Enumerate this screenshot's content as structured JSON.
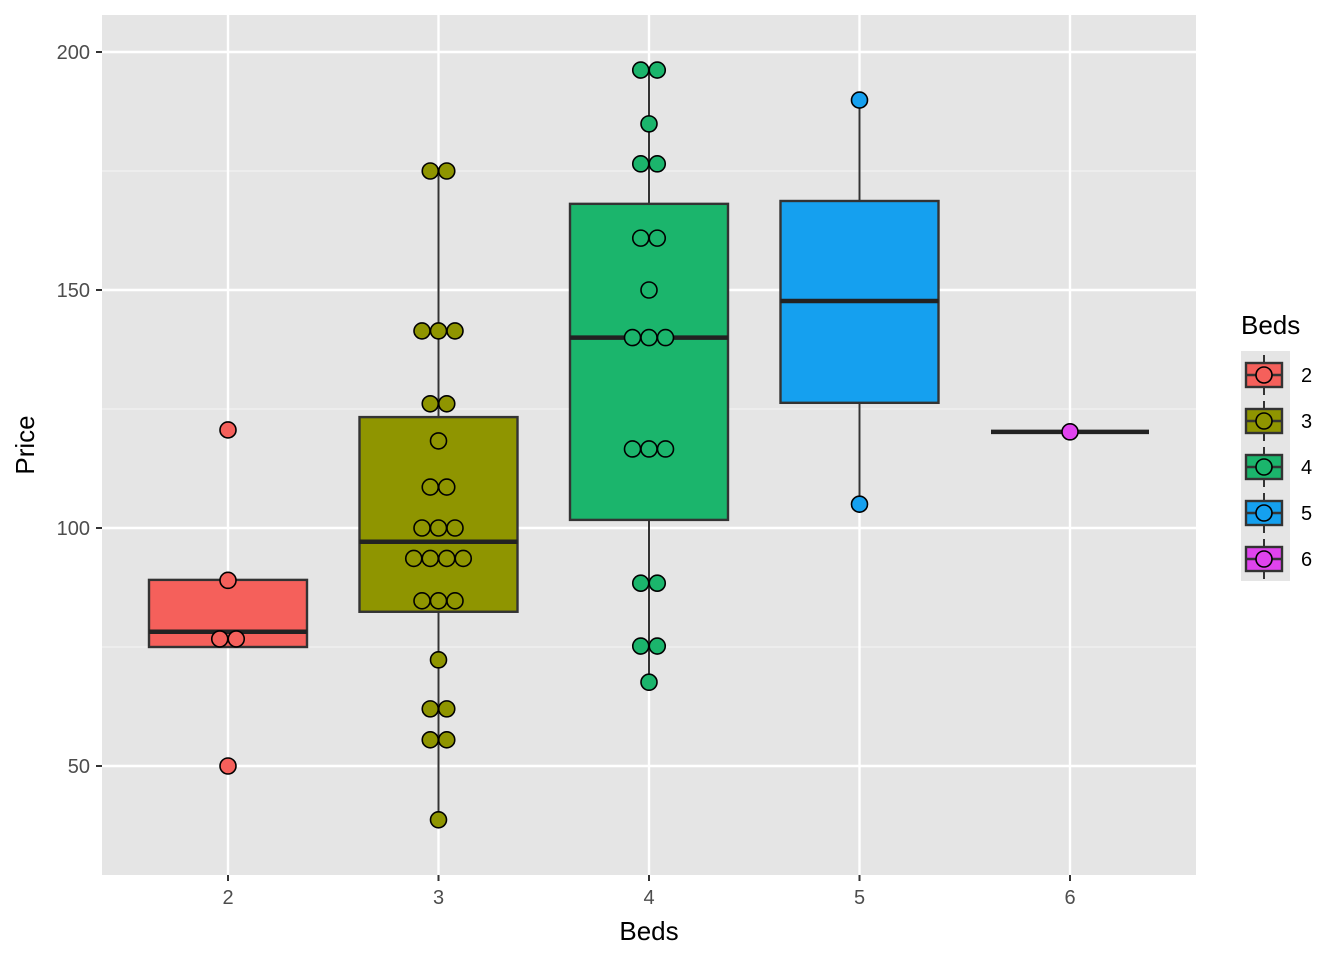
{
  "chart_data": {
    "type": "box",
    "title": "",
    "xlabel": "Beds",
    "ylabel": "Price",
    "ylim": [
      27,
      208
    ],
    "yticks": [
      50,
      100,
      150,
      200
    ],
    "categories": [
      "2",
      "3",
      "4",
      "5",
      "6"
    ],
    "colors": [
      "#F5605B",
      "#8F9500",
      "#1BB56C",
      "#15A0EF",
      "#E043EE"
    ],
    "legend": {
      "title": "Beds",
      "entries": [
        "2",
        "3",
        "4",
        "5",
        "6"
      ],
      "placement": "right"
    },
    "boxes": [
      {
        "beds": "2",
        "q1": 75.0,
        "median": 78.2,
        "q3": 89.1,
        "whisker_low": 75.0,
        "whisker_high": 89.1
      },
      {
        "beds": "3",
        "q1": 82.4,
        "median": 97.1,
        "q3": 123.3,
        "whisker_low": 38.7,
        "whisker_high": 175.0
      },
      {
        "beds": "4",
        "q1": 101.7,
        "median": 140.0,
        "q3": 168.1,
        "whisker_low": 67.6,
        "whisker_high": 196.2
      },
      {
        "beds": "5",
        "q1": 126.3,
        "median": 147.7,
        "q3": 168.7,
        "whisker_low": 105.0,
        "whisker_high": 189.9
      },
      {
        "beds": "6",
        "q1": 120.2,
        "median": 120.2,
        "q3": 120.2,
        "whisker_low": 120.2,
        "whisker_high": 120.2
      }
    ],
    "points": [
      {
        "beds": "2",
        "groups": [
          {
            "value": 120.6,
            "count": 1
          },
          {
            "value": 89.0,
            "count": 1
          },
          {
            "value": 76.7,
            "count": 2
          },
          {
            "value": 50.0,
            "count": 1
          }
        ]
      },
      {
        "beds": "3",
        "groups": [
          {
            "value": 175.0,
            "count": 2
          },
          {
            "value": 141.4,
            "count": 3
          },
          {
            "value": 126.1,
            "count": 2
          },
          {
            "value": 118.3,
            "count": 1
          },
          {
            "value": 108.6,
            "count": 2
          },
          {
            "value": 100.0,
            "count": 3
          },
          {
            "value": 93.6,
            "count": 4
          },
          {
            "value": 84.7,
            "count": 3
          },
          {
            "value": 72.3,
            "count": 1
          },
          {
            "value": 62.0,
            "count": 2
          },
          {
            "value": 55.5,
            "count": 2
          },
          {
            "value": 38.7,
            "count": 1
          }
        ]
      },
      {
        "beds": "4",
        "groups": [
          {
            "value": 196.2,
            "count": 2
          },
          {
            "value": 184.9,
            "count": 1
          },
          {
            "value": 176.5,
            "count": 2
          },
          {
            "value": 160.9,
            "count": 2
          },
          {
            "value": 150.0,
            "count": 1
          },
          {
            "value": 140.0,
            "count": 3
          },
          {
            "value": 116.6,
            "count": 3
          },
          {
            "value": 88.4,
            "count": 2
          },
          {
            "value": 75.2,
            "count": 2
          },
          {
            "value": 67.6,
            "count": 1
          }
        ]
      },
      {
        "beds": "5",
        "groups": [
          {
            "value": 189.9,
            "count": 1
          },
          {
            "value": 105.0,
            "count": 1
          }
        ]
      },
      {
        "beds": "6",
        "groups": [
          {
            "value": 120.2,
            "count": 1
          }
        ]
      }
    ]
  }
}
